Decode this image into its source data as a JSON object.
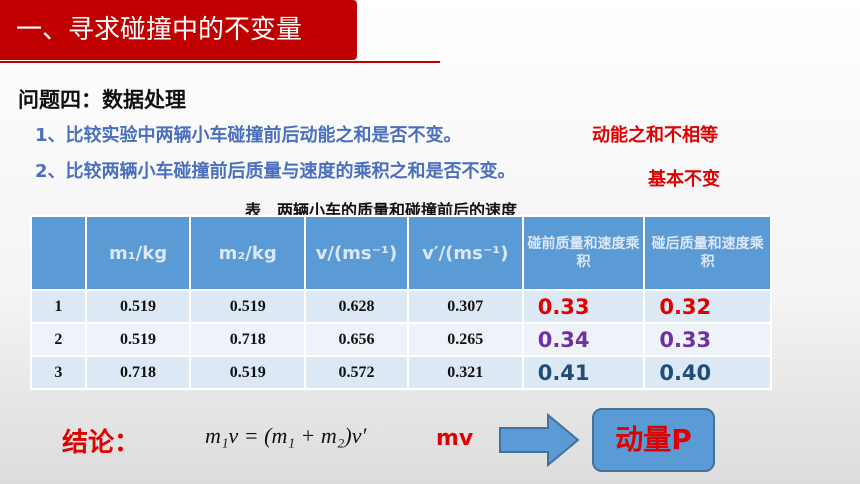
{
  "header": {
    "title": "一、寻求碰撞中的不变量"
  },
  "question": {
    "title": "问题四：数据处理",
    "items": [
      {
        "text": "1、比较实验中两辆小车碰撞前后动能之和是否不变。",
        "note": "动能之和不相等"
      },
      {
        "text": "2、比较两辆小车碰撞前后质量与速度的乘积之和是否不变。",
        "note": "基本不变"
      }
    ]
  },
  "table": {
    "caption": "表　两辆小车的质量和碰撞前后的速度",
    "headers": [
      "m₁/kg",
      "m₂/kg",
      "v/(ms⁻¹)",
      "v′/(ms⁻¹)",
      "碰前质量和速度乘积",
      "碰后质量和速度乘积"
    ],
    "rows": [
      [
        "1",
        "0.519",
        "0.519",
        "0.628",
        "0.307",
        "0.33",
        "0.32"
      ],
      [
        "2",
        "0.519",
        "0.718",
        "0.656",
        "0.265",
        "0.34",
        "0.33"
      ],
      [
        "3",
        "0.718",
        "0.519",
        "0.572",
        "0.321",
        "0.41",
        "0.40"
      ]
    ]
  },
  "conclusion": {
    "label": "结论：",
    "formula": "m₁v = (m₁ + m₂)v′",
    "quantity": "mv",
    "result": "动量P"
  }
}
